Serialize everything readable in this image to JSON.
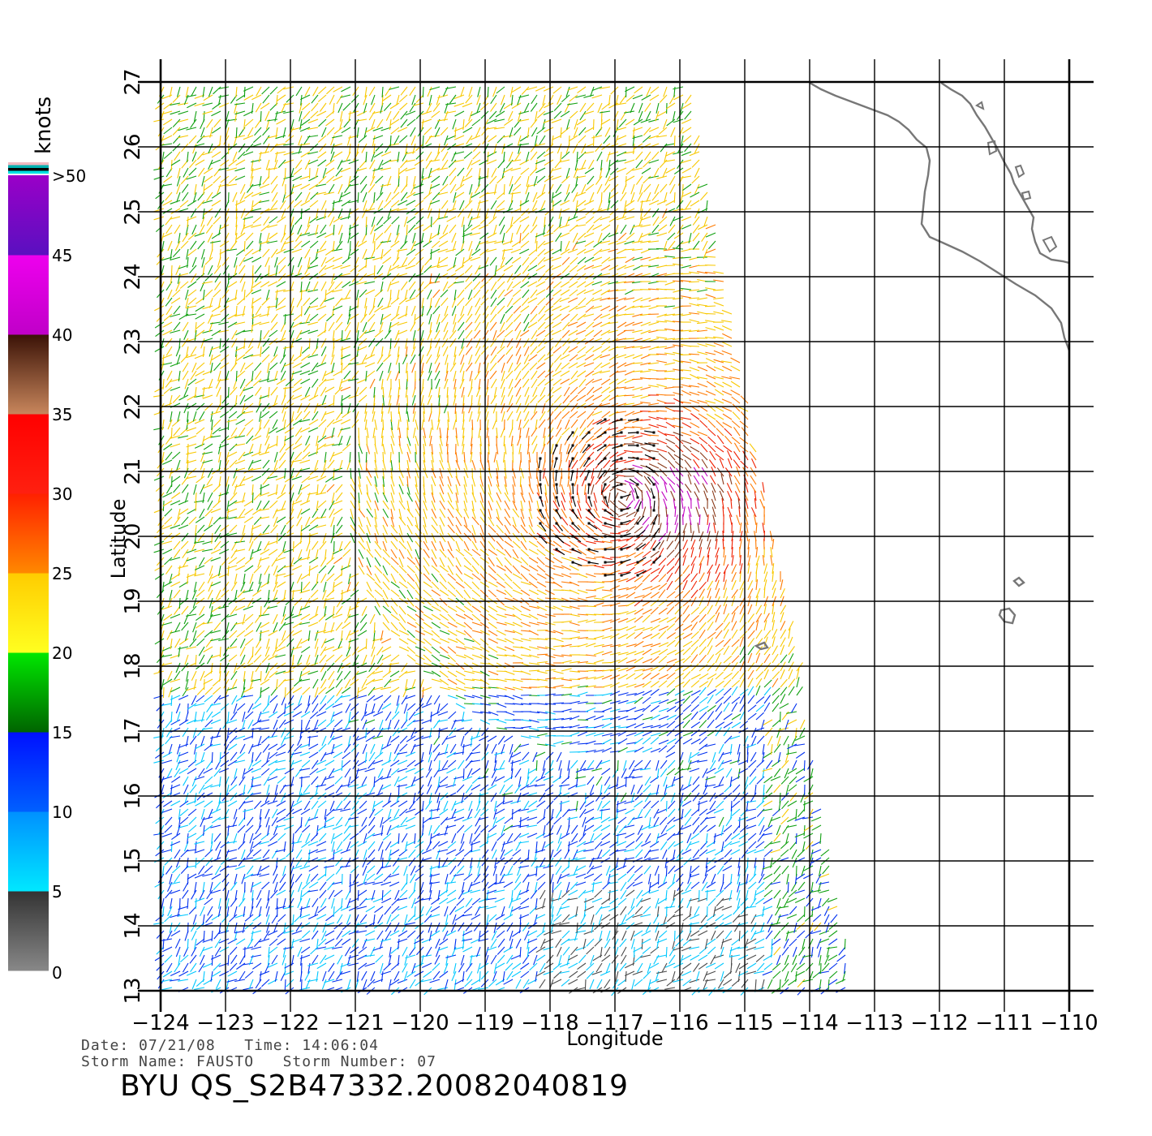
{
  "axes": {
    "xlabel": "Longitude",
    "ylabel": "Latitude",
    "x_ticks": [
      "-124",
      "-123",
      "-122",
      "-121",
      "-120",
      "-119",
      "-118",
      "-117",
      "-116",
      "-115",
      "-114",
      "-113",
      "-112",
      "-111",
      "-110"
    ],
    "y_ticks": [
      "13",
      "14",
      "15",
      "16",
      "17",
      "18",
      "19",
      "20",
      "21",
      "22",
      "23",
      "24",
      "25",
      "26",
      "27"
    ],
    "lon_range": [
      -124,
      -110
    ],
    "lat_range": [
      13,
      27
    ],
    "grid": true
  },
  "colorbar": {
    "unit": "knots",
    "labels": [
      "0",
      "5",
      "10",
      "15",
      "20",
      "25",
      "30",
      "35",
      "40",
      "45",
      ">50"
    ],
    "segments": [
      {
        "from": 0,
        "to": 5,
        "top": "#333333",
        "bottom": "#888888"
      },
      {
        "from": 5,
        "to": 10,
        "top": "#0090ff",
        "bottom": "#00e8ff"
      },
      {
        "from": 10,
        "to": 15,
        "top": "#0010ff",
        "bottom": "#0060ff"
      },
      {
        "from": 15,
        "to": 20,
        "top": "#00e800",
        "bottom": "#006400"
      },
      {
        "from": 20,
        "to": 25,
        "top": "#ffcc00",
        "bottom": "#ffff20"
      },
      {
        "from": 25,
        "to": 30,
        "top": "#ff2000",
        "bottom": "#ff8800"
      },
      {
        "from": 30,
        "to": 35,
        "top": "#ff0000",
        "bottom": "#ff2010"
      },
      {
        "from": 35,
        "to": 40,
        "top": "#3a1206",
        "bottom": "#c8865c"
      },
      {
        "from": 40,
        "to": 45,
        "top": "#ee00ee",
        "bottom": "#c000c8"
      },
      {
        "from": 45,
        "to": 50,
        "top": "#9a00c8",
        "bottom": "#5a10c0"
      }
    ],
    "top_stripes": [
      "#f0b8c0",
      "#00b0b0",
      "#000000",
      "#00e0e0"
    ]
  },
  "wind_field": {
    "swath_corners": [
      [
        -123.97,
        27.0
      ],
      [
        -115.85,
        27.0
      ],
      [
        -113.3,
        13.0
      ],
      [
        -124.0,
        13.0
      ]
    ],
    "storm_center": [
      -116.9,
      20.6
    ],
    "rain_flag_lon_range": [
      -118.9,
      -116.2
    ],
    "rain_flag_lat_range": [
      19.2,
      22.0
    ],
    "vector_color": "#000000"
  },
  "coastline_color": "#777777",
  "footer": {
    "date_line": "Date: 07/21/08   Time: 14:06:04",
    "storm_line": "Storm Name: FAUSTO   Storm Number: 07",
    "ident": "BYU QS_S2B47332.20082040819"
  }
}
